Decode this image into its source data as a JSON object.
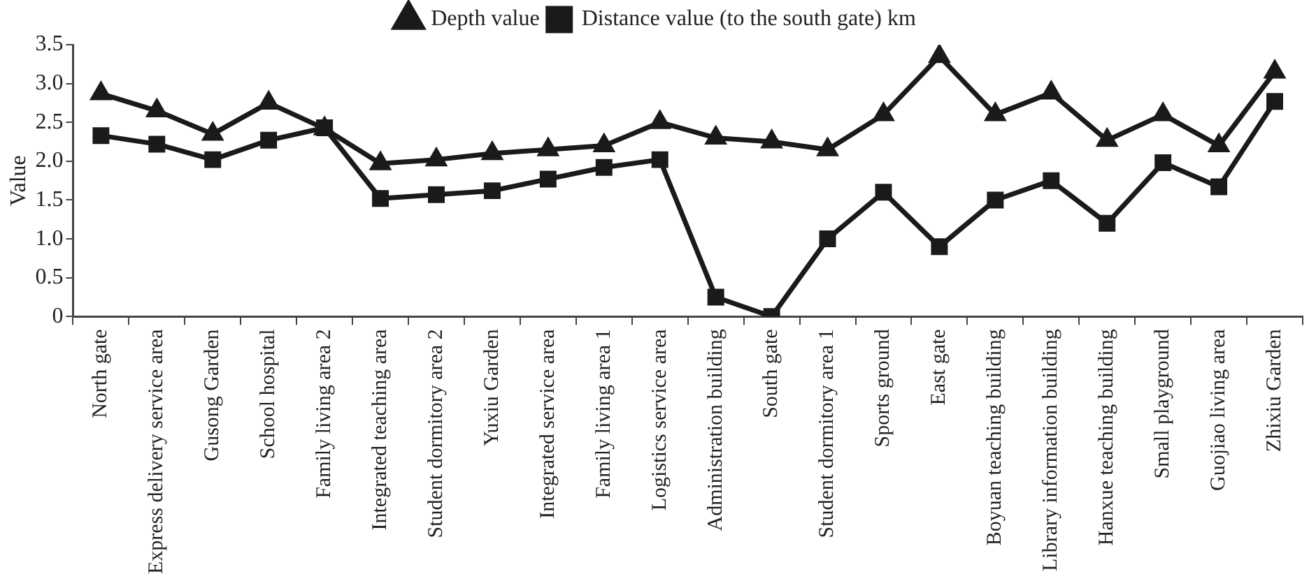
{
  "chart_data": {
    "type": "line",
    "ylabel": "Value",
    "categories": [
      "North gate",
      "Express delivery service area",
      "Gusong Garden",
      "School hospital",
      "Family living area 2",
      "Integrated teaching area",
      "Student dormitory area 2",
      "Yuxiu Garden",
      "Integrated service area",
      "Family living area 1",
      "Logistics service area",
      "Administration building",
      "South gate",
      "Student dormitory area 1",
      "Sports ground",
      "East gate",
      "Boyuan teaching building",
      "Library information building",
      "Hanxue teaching building",
      "Small playground",
      "Guojiao living area",
      "Zhixiu Garden"
    ],
    "series": [
      {
        "name": "Depth value",
        "color": "#1a1a1a",
        "marker": "triangle",
        "values": [
          2.87,
          2.65,
          2.35,
          2.75,
          2.42,
          1.97,
          2.02,
          2.1,
          2.15,
          2.2,
          2.5,
          2.3,
          2.25,
          2.15,
          2.6,
          3.35,
          2.6,
          2.88,
          2.27,
          2.6,
          2.2,
          3.15
        ]
      },
      {
        "name": "Distance value (to the south gate) km",
        "color": "#1a1a1a",
        "marker": "square",
        "values": [
          2.33,
          2.22,
          2.02,
          2.27,
          2.43,
          1.52,
          1.57,
          1.62,
          1.77,
          1.92,
          2.02,
          0.25,
          0,
          1.0,
          1.6,
          0.9,
          1.5,
          1.75,
          1.2,
          1.98,
          1.67,
          2.77
        ]
      }
    ],
    "ylim": [
      0,
      3.5
    ],
    "yticks": [
      0,
      0.5,
      {
        "value": 1,
        "label": "1.0"
      },
      1.5,
      {
        "value": 2,
        "label": "2.0"
      },
      2.5,
      {
        "value": 3,
        "label": "3.0"
      },
      3.5
    ],
    "grid": false,
    "legend": "top",
    "line_style": "solid"
  }
}
